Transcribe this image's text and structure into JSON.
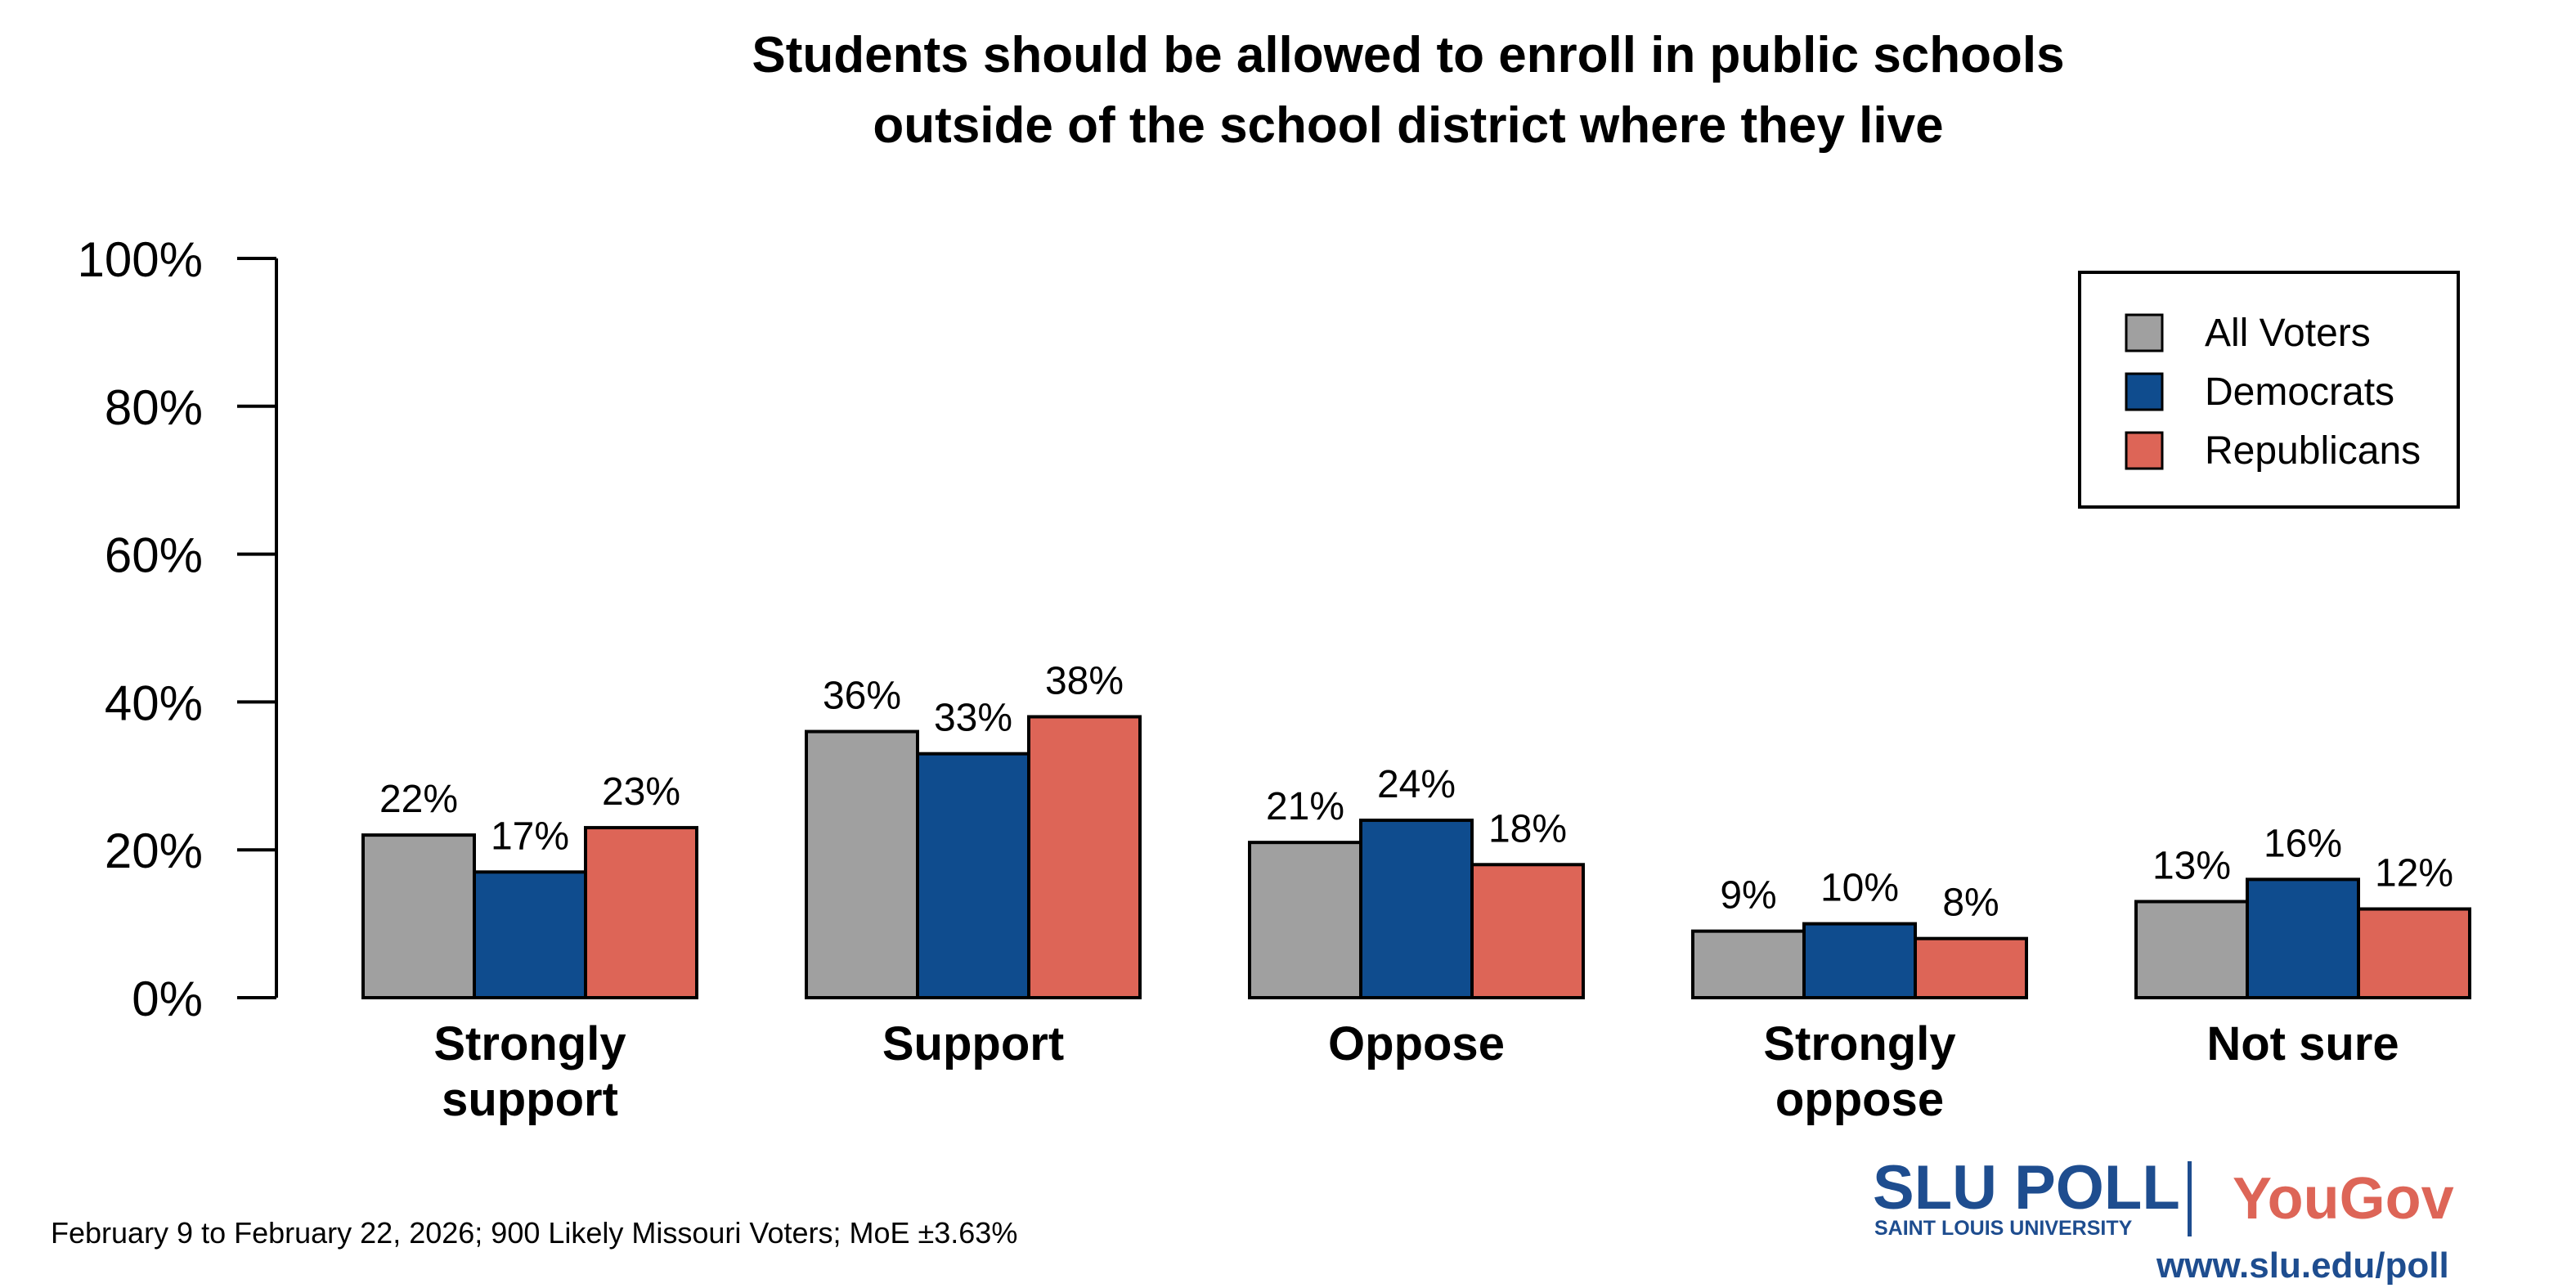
{
  "chart_data": {
    "type": "bar",
    "title": [
      "Students should be allowed to enroll in public schools",
      "outside of the school district where they live"
    ],
    "xlabel": "",
    "ylabel": "",
    "ylim": [
      0,
      100
    ],
    "yticks": [
      "0%",
      "20%",
      "40%",
      "60%",
      "80%",
      "100%"
    ],
    "grid": false,
    "legend_position": "top-right",
    "categories": [
      [
        "Strongly",
        "support"
      ],
      [
        "Support"
      ],
      [
        "Oppose"
      ],
      [
        "Strongly",
        "oppose"
      ],
      [
        "Not sure"
      ]
    ],
    "series": [
      {
        "name": "All Voters",
        "color": "#a0a0a0",
        "values": [
          22,
          36,
          21,
          9,
          13
        ],
        "labels": [
          "22%",
          "36%",
          "21%",
          "9%",
          "13%"
        ]
      },
      {
        "name": "Democrats",
        "color": "#0f4c8e",
        "values": [
          17,
          33,
          24,
          10,
          16
        ],
        "labels": [
          "17%",
          "33%",
          "24%",
          "10%",
          "16%"
        ]
      },
      {
        "name": "Republicans",
        "color": "#dd6557",
        "values": [
          23,
          38,
          18,
          8,
          12
        ],
        "labels": [
          "23%",
          "38%",
          "18%",
          "8%",
          "12%"
        ]
      }
    ]
  },
  "footnote": "February 9 to February 22, 2026; 900 Likely Missouri Voters; MoE ±3.63%",
  "logo": {
    "slu": "SLU POLL",
    "slu_sub": "SAINT LOUIS UNIVERSITY",
    "yougov": "YouGov",
    "url": "www.slu.edu/poll",
    "slu_color": "#1e4d8f",
    "yougov_color": "#dd6557"
  }
}
